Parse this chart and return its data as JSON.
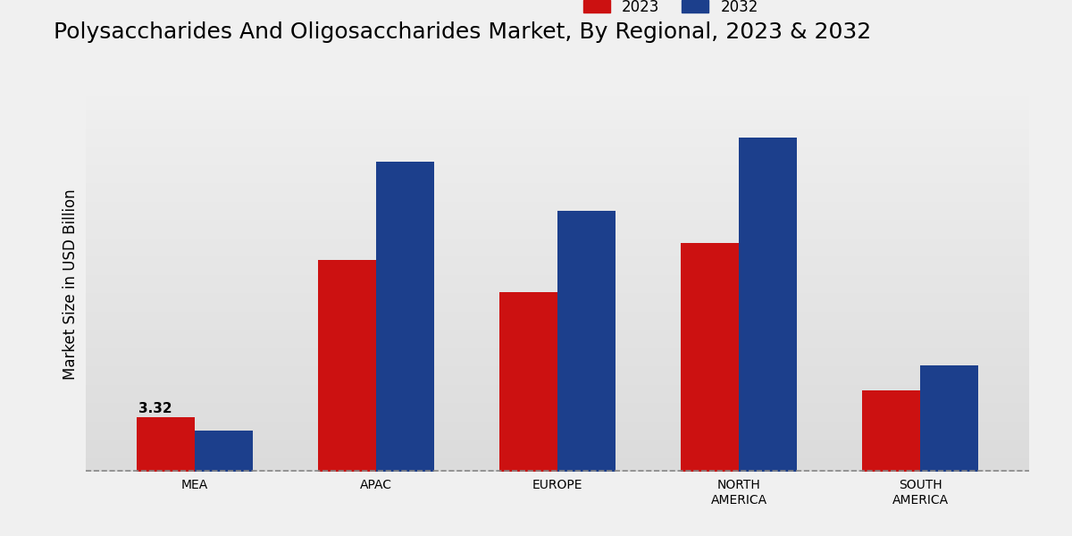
{
  "title": "Polysaccharides And Oligosaccharides Market, By Regional, 2023 & 2032",
  "ylabel": "Market Size in USD Billion",
  "categories": [
    "MEA",
    "APAC",
    "EUROPE",
    "NORTH\nAMERICA",
    "SOUTH\nAMERICA"
  ],
  "values_2023": [
    3.32,
    13.0,
    11.0,
    14.0,
    5.0
  ],
  "values_2032": [
    2.5,
    19.0,
    16.0,
    20.5,
    6.5
  ],
  "color_2023": "#cc1111",
  "color_2032": "#1c3f8c",
  "annotation_label": "3.32",
  "annotation_index": 0,
  "legend_labels": [
    "2023",
    "2032"
  ],
  "bar_width": 0.32,
  "ylim_max": 23,
  "title_fontsize": 18,
  "axis_label_fontsize": 12,
  "tick_fontsize": 10,
  "legend_fontsize": 12,
  "bottom_bar_color": "#cc1111",
  "bg_top": "#f5f5f5",
  "bg_bottom": "#d8d8d8"
}
